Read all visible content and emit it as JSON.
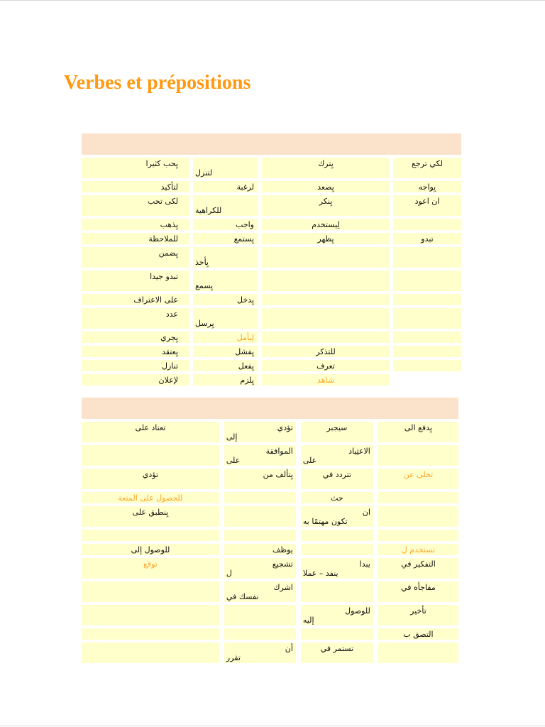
{
  "title": {
    "text": "Verbes et prépositions"
  },
  "colors": {
    "title": "#FF9912",
    "accent": "#FFA428",
    "header_bg": "#FBE3CB",
    "cell_bg": "#FFFFCC"
  },
  "table1": {
    "header": "",
    "rows": [
      [
        {
          "l1": "يِحب كثيرا"
        },
        {
          "l1": "",
          "l2": "لتنزل"
        },
        {
          "l1": "يِترك"
        },
        {
          "l1": "لكي ترجع"
        }
      ],
      [
        {
          "l1": "لتأكيد"
        },
        {
          "l1": "لرغبة"
        },
        {
          "l1": "يِصعد"
        },
        {
          "l1": "يِواجه"
        }
      ],
      [
        {
          "l1": "لكى تحب"
        },
        {
          "l1": "",
          "l2": "للكراهية"
        },
        {
          "l1": "يِنكر"
        },
        {
          "l1": "ان اعود"
        }
      ],
      [
        {
          "l1": "يِذهب"
        },
        {
          "l1": "واجب"
        },
        {
          "l1": "لِيستخدم"
        },
        {
          "l1": ""
        }
      ],
      [
        {
          "l1": "للملاحظة"
        },
        {
          "l1": "يِستمع"
        },
        {
          "l1": "يِظهر"
        },
        {
          "l1": "تبدو"
        }
      ],
      [
        {
          "l1": "يِضمن"
        },
        {
          "l1": "",
          "l2": "يِأخذ"
        },
        {
          "l1": ""
        },
        {
          "l1": ""
        }
      ],
      [
        {
          "l1": "تبدو جيدا"
        },
        {
          "l1": "",
          "l2": "يِسمع"
        },
        {
          "l1": ""
        },
        {
          "l1": ""
        }
      ],
      [
        {
          "l1": "على الاعتراف"
        },
        {
          "l1": "يِدخل"
        },
        {
          "l1": ""
        },
        {
          "l1": ""
        }
      ],
      [
        {
          "l1": "عدد"
        },
        {
          "l1": "",
          "l2": "يِرسل"
        },
        {
          "l1": ""
        },
        {
          "l1": ""
        }
      ],
      [
        {
          "l1": "يِجري"
        },
        {
          "l1": "لِيأمل",
          "orange": true
        },
        {
          "l1": ""
        },
        {
          "l1": ""
        }
      ],
      [
        {
          "l1": "يِعتقد"
        },
        {
          "l1": "يِفشل"
        },
        {
          "l1": "للتذكر"
        },
        {
          "l1": ""
        }
      ],
      [
        {
          "l1": "تنازل"
        },
        {
          "l1": "يِفعل"
        },
        {
          "l1": "تعرف"
        },
        {
          "l1": ""
        }
      ],
      [
        {
          "l1": "لإعلان"
        },
        {
          "l1": "يِلزم"
        },
        {
          "l1": "شاهد",
          "orange": true
        },
        null
      ]
    ]
  },
  "table2": {
    "header": "",
    "rows": [
      [
        {
          "l1": "تعتاد على"
        },
        {
          "l1": "تؤدي",
          "l2": "إلى"
        },
        {
          "l1": "سيجبر"
        },
        {
          "l1": "يِدفع الى"
        }
      ],
      [
        {
          "l1": ""
        },
        {
          "l1": "الموافقة",
          "l2": "على"
        },
        {
          "l1": "الاعتِياد",
          "l2": "على"
        },
        {
          "l1": ""
        }
      ],
      [
        {
          "l1": "تؤدي",
          "l2": ""
        },
        {
          "l1": "يِتألف من"
        },
        {
          "l1": "تتردد في"
        },
        {
          "l1": "تخلى عن",
          "orange": true
        }
      ],
      [
        {
          "l1": "للحصول على المتعة",
          "orange": true
        },
        {
          "l1": ""
        },
        {
          "l1": "حث"
        },
        {
          "l1": ""
        }
      ],
      [
        {
          "l1": "يِنطبق على"
        },
        {
          "l1": ""
        },
        {
          "l1": "ان",
          "l2": "تكون مهتمًا به"
        },
        {
          "l1": ""
        }
      ],
      [
        {
          "l1": ""
        },
        {
          "l1": ""
        },
        {
          "l1": ""
        },
        {
          "l1": ""
        }
      ],
      [
        {
          "l1": "للوصول إلى"
        },
        {
          "l1": "يوظف"
        },
        {
          "l1": ""
        },
        {
          "l1": "تستخدم ل",
          "orange": true
        }
      ],
      [
        {
          "l1": "توقع",
          "orange": true
        },
        {
          "l1": "تشجيع",
          "l2": "ل"
        },
        {
          "l1": "يبدا",
          "l2": "ينفد – عملا"
        },
        {
          "l1": "التفكير في"
        }
      ],
      [
        {
          "l1": ""
        },
        {
          "l1": "اشرك",
          "l2": "نفسك في"
        },
        {
          "l1": ""
        },
        {
          "l1": "مفاجأه في"
        }
      ],
      [
        {
          "l1": ""
        },
        {
          "l1": ""
        },
        {
          "l1": "للوصول",
          "l2": "إليه"
        },
        {
          "l1": "تأخير"
        }
      ],
      [
        {
          "l1": ""
        },
        {
          "l1": ""
        },
        {
          "l1": ""
        },
        {
          "l1": "التصق ب"
        }
      ],
      [
        {
          "l1": ""
        },
        {
          "l1": "أن",
          "l2": "تقرر"
        },
        {
          "l1": "تستمر في"
        },
        {
          "l1": ""
        }
      ]
    ]
  }
}
